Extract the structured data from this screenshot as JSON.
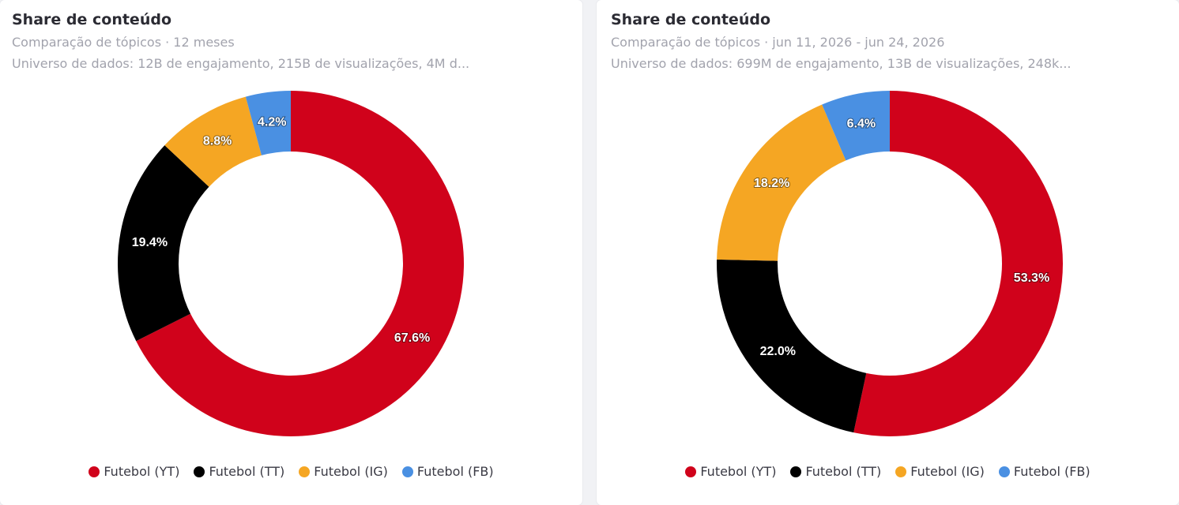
{
  "chart_data": [
    {
      "type": "pie",
      "title": "Share de conteúdo",
      "subtitle": "Comparação de tópicos · 12 meses",
      "universe": "Universo de dados: 12B de engajamento, 215B de visualizações, 4M d...",
      "donut": true,
      "legend": "bottom",
      "categories": [
        "Futebol (YT)",
        "Futebol (TT)",
        "Futebol (IG)",
        "Futebol (FB)"
      ],
      "values": [
        67.6,
        19.4,
        8.8,
        4.2
      ],
      "labels": [
        "67.6%",
        "19.4%",
        "8.8%",
        "4.2%"
      ],
      "colors": [
        "#d0021b",
        "#000000",
        "#f5a623",
        "#4a90e2"
      ]
    },
    {
      "type": "pie",
      "title": "Share de conteúdo",
      "subtitle": "Comparação de tópicos · jun 11, 2026 - jun 24, 2026",
      "universe": "Universo de dados: 699M de engajamento, 13B de visualizações, 248k...",
      "donut": true,
      "legend": "bottom",
      "categories": [
        "Futebol (YT)",
        "Futebol (TT)",
        "Futebol (IG)",
        "Futebol (FB)"
      ],
      "values": [
        53.3,
        22.0,
        18.2,
        6.4
      ],
      "labels": [
        "53.3%",
        "22.0%",
        "18.2%",
        "6.4%"
      ],
      "colors": [
        "#d0021b",
        "#000000",
        "#f5a623",
        "#4a90e2"
      ]
    }
  ]
}
